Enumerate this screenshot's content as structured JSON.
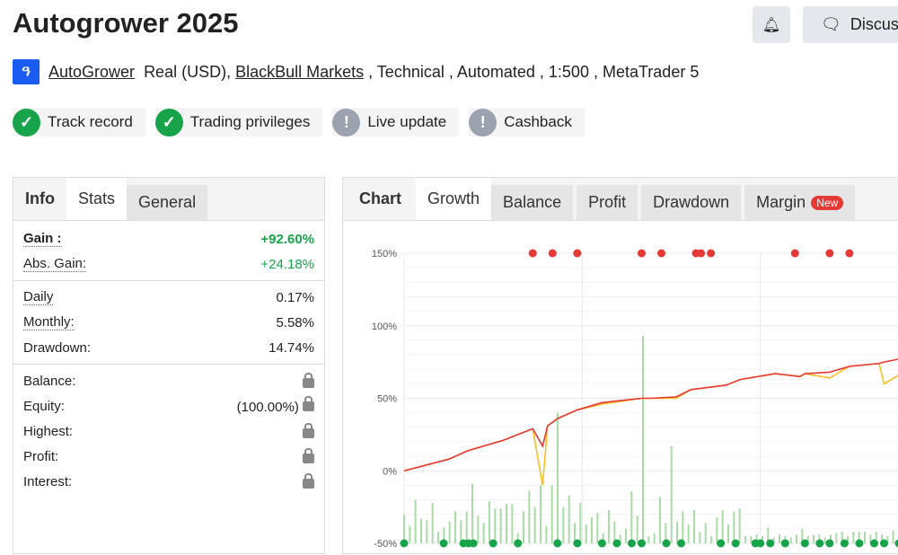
{
  "header": {
    "title": "Autogrower 2025",
    "discuss_label": "Discuss",
    "author": "AutoGrower",
    "account": "Real (USD), ",
    "broker": "BlackBull Markets",
    "rest": " , Technical , Automated , 1:500 , MetaTrader 5",
    "logo_letter": "ዓ"
  },
  "badges": [
    {
      "label": "Track record",
      "status": "ok"
    },
    {
      "label": "Trading privileges",
      "status": "ok"
    },
    {
      "label": "Live update",
      "status": "warn"
    },
    {
      "label": "Cashback",
      "status": "warn"
    }
  ],
  "left_tabs": [
    "Info",
    "Stats",
    "General"
  ],
  "stats": {
    "gain_label": "Gain :",
    "gain": "+92.60%",
    "abs_label": "Abs. Gain:",
    "abs": "+24.18%",
    "daily_label": "Daily",
    "daily": "0.17%",
    "monthly_label": "Monthly:",
    "monthly": "5.58%",
    "dd_label": "Drawdown:",
    "dd": "14.74%",
    "balance_label": "Balance:",
    "equity_label": "Equity:",
    "equity": "(100.00%)",
    "highest_label": "Highest:",
    "profit_label": "Profit:",
    "interest_label": "Interest:"
  },
  "chart_tabs": {
    "chart": "Chart",
    "growth": "Growth",
    "balance": "Balance",
    "profit": "Profit",
    "drawdown": "Drawdown",
    "margin": "Margin",
    "new_badge": "New"
  },
  "colors": {
    "balance": "#e53935",
    "equity": "#fbbf24",
    "bars": "#a7dca5",
    "green_dot": "#16a34a",
    "red_dot": "#e53935"
  },
  "chart_data": {
    "type": "line",
    "ylim": [
      -50,
      150
    ],
    "yticks": [
      "150%",
      "100%",
      "50%",
      "0%",
      "-50%"
    ],
    "x": [
      0,
      9,
      13,
      20,
      26,
      28,
      29,
      31,
      35,
      40,
      48,
      50,
      55,
      58,
      65,
      68,
      75,
      80,
      81,
      86,
      90,
      96,
      97,
      100
    ],
    "series": [
      {
        "key": "balance",
        "values": [
          0,
          8,
          14,
          21,
          29,
          17,
          31,
          36,
          42,
          47,
          50,
          50,
          51,
          56,
          59,
          63,
          67,
          65,
          67,
          68,
          72,
          74,
          75,
          77
        ]
      },
      {
        "key": "equity",
        "values": [
          0,
          8,
          14,
          21,
          29,
          -10,
          31,
          36,
          42,
          46,
          50,
          50,
          50,
          56,
          59,
          63,
          67,
          65,
          67,
          64,
          72,
          74,
          60,
          66
        ]
      }
    ],
    "bars": [
      -30,
      -38,
      -20,
      -33,
      -34,
      -22,
      -42,
      -39,
      -35,
      -28,
      -34,
      -28,
      -9,
      -31,
      -36,
      -21,
      -26,
      -26,
      -23,
      -23,
      -43,
      -28,
      -14,
      -25,
      -10,
      -38,
      -10,
      40,
      -25,
      -17,
      -36,
      -22,
      -37,
      -32,
      -29,
      -43,
      -27,
      -35,
      -44,
      -40,
      -14,
      -31,
      93,
      -45,
      -43,
      -18,
      -36,
      17,
      -35,
      -28,
      -37,
      -27,
      -42,
      -36,
      -45,
      -32,
      -27,
      -37,
      -28,
      -26,
      -45,
      -45,
      -44,
      -45,
      -39,
      -46,
      -44,
      -45,
      -46,
      -44,
      -40,
      -45,
      -44,
      -44,
      -46,
      -44,
      -43,
      -42,
      -45,
      -42,
      -42,
      -42,
      -44,
      -42,
      -44,
      -45,
      -41,
      -43
    ],
    "top_markers": [
      26,
      30,
      35,
      48,
      52,
      59,
      60,
      62,
      79,
      86,
      90
    ],
    "bottom_markers": [
      0,
      8,
      12,
      13,
      14,
      18,
      23,
      31,
      35,
      40,
      43,
      46,
      48,
      53,
      56,
      64,
      67,
      71,
      72,
      74,
      77,
      81,
      84,
      86,
      89,
      92,
      95,
      97,
      100
    ]
  }
}
